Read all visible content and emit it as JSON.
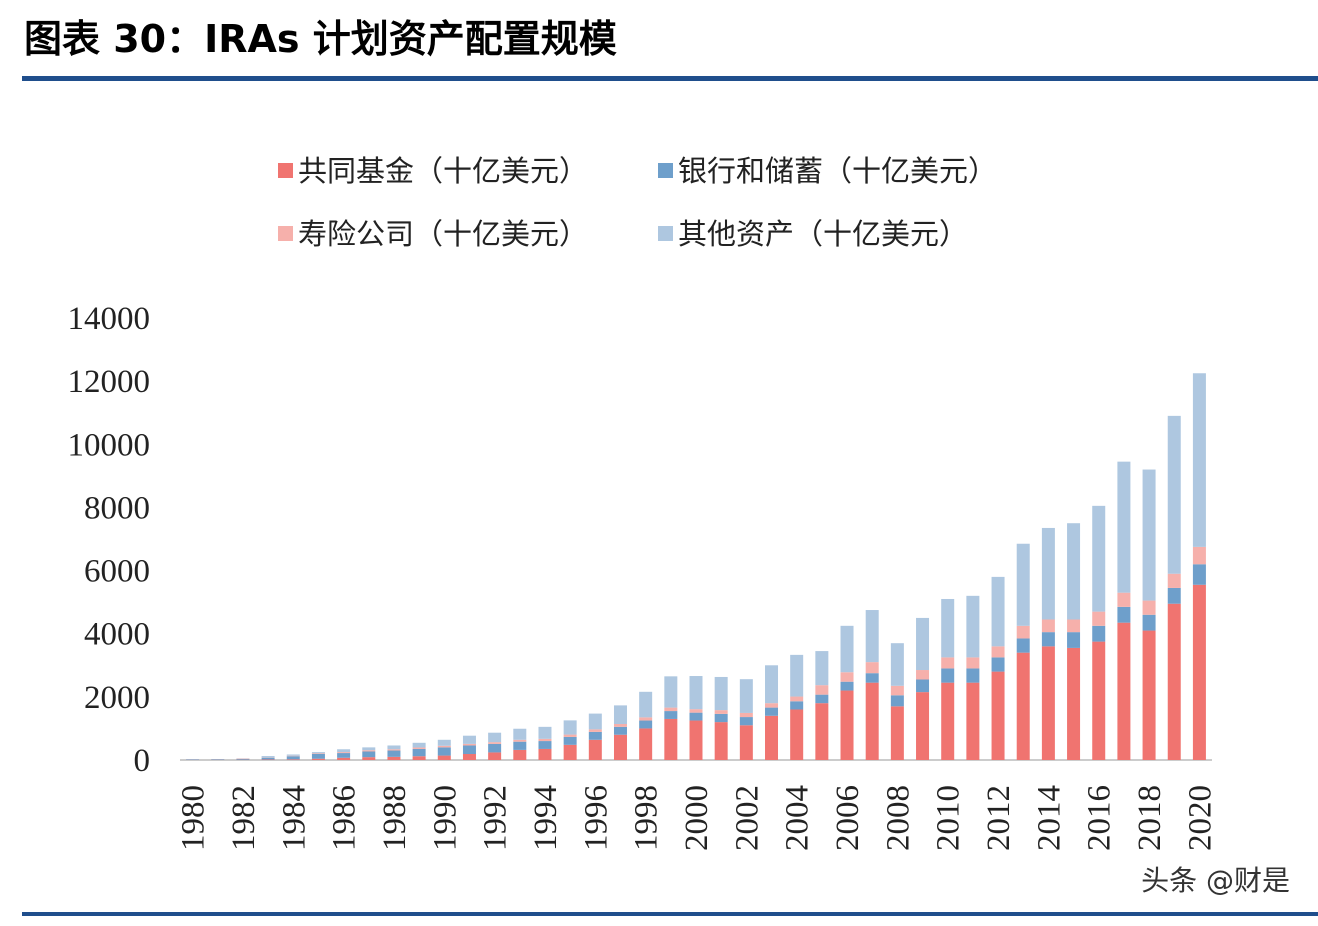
{
  "header": {
    "title": "图表 30：IRAs 计划资产配置规模"
  },
  "chart_data": {
    "type": "stacked-bar",
    "categories": [
      "1980",
      null,
      "1982",
      null,
      "1984",
      null,
      "1986",
      null,
      "1988",
      null,
      "1990",
      null,
      "1992",
      null,
      "1994",
      null,
      "1996",
      null,
      "1998",
      null,
      "2000",
      null,
      "2002",
      null,
      "2004",
      null,
      "2006",
      null,
      "2008",
      null,
      "2010",
      null,
      "2012",
      null,
      "2014",
      null,
      "2016",
      null,
      "2018",
      null,
      "2020"
    ],
    "series": [
      {
        "name": "共同基金（十亿美元）",
        "color": "#f07470",
        "values": [
          3,
          5,
          10,
          15,
          20,
          40,
          70,
          90,
          100,
          120,
          140,
          190,
          240,
          320,
          350,
          480,
          640,
          800,
          1000,
          1300,
          1250,
          1200,
          1100,
          1400,
          1600,
          1800,
          2200,
          2450,
          1700,
          2150,
          2450,
          2450,
          2800,
          3400,
          3600,
          3550,
          3750,
          4350,
          4100,
          4950,
          5550
        ]
      },
      {
        "name": "银行和储蓄（十亿美元）",
        "color": "#6e9fcb",
        "values": [
          17,
          20,
          30,
          60,
          100,
          150,
          150,
          180,
          200,
          230,
          260,
          270,
          270,
          260,
          250,
          250,
          250,
          250,
          250,
          250,
          250,
          260,
          260,
          260,
          260,
          270,
          280,
          300,
          350,
          400,
          450,
          450,
          450,
          450,
          450,
          500,
          500,
          500,
          500,
          500,
          650
        ]
      },
      {
        "name": "寿险公司（十亿美元）",
        "color": "#f6b0ab",
        "values": [
          5,
          5,
          10,
          10,
          15,
          20,
          30,
          40,
          40,
          45,
          50,
          50,
          55,
          60,
          70,
          75,
          80,
          90,
          100,
          110,
          110,
          120,
          130,
          140,
          150,
          300,
          300,
          350,
          300,
          300,
          350,
          350,
          350,
          400,
          400,
          400,
          450,
          450,
          450,
          450,
          550
        ]
      },
      {
        "name": "其他资产（十亿美元）",
        "color": "#aec7e0",
        "values": [
          0,
          0,
          0,
          40,
          40,
          40,
          90,
          90,
          120,
          150,
          190,
          260,
          300,
          350,
          380,
          450,
          500,
          590,
          810,
          990,
          1050,
          1050,
          1070,
          1200,
          1320,
          1080,
          1470,
          1650,
          1350,
          1650,
          1850,
          1950,
          2200,
          2600,
          2900,
          3050,
          3350,
          4150,
          4150,
          5000,
          5500
        ]
      }
    ],
    "ylim": [
      0,
      14000
    ],
    "yticks": [
      0,
      2000,
      4000,
      6000,
      8000,
      10000,
      12000,
      14000
    ]
  },
  "watermark": "头条 @财是"
}
